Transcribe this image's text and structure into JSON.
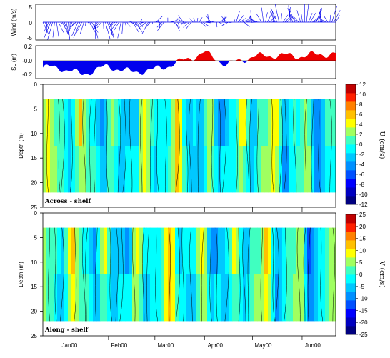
{
  "chart_data": [
    {
      "type": "line",
      "panel": "wind",
      "ylabel": "Wind (m/s)",
      "ylim": [
        -5,
        5
      ],
      "yticks": [
        "5",
        "0",
        "-5"
      ],
      "style": "stick-vectors",
      "color": "#0000ee",
      "x": [
        "2000-01-01",
        "2000-01-15",
        "2000-02-01",
        "2000-02-15",
        "2000-03-01",
        "2000-03-15",
        "2000-04-01",
        "2000-04-15",
        "2000-05-01",
        "2000-05-15",
        "2000-06-01",
        "2000-06-15"
      ],
      "values": [
        -3.8,
        -2.5,
        -3.2,
        -1.5,
        -0.6,
        -0.4,
        0.3,
        0.8,
        1.2,
        2.8,
        3.5,
        2.2
      ]
    },
    {
      "type": "area",
      "panel": "sea-level",
      "ylabel": "SL (m)",
      "ylim": [
        -0.25,
        0.2
      ],
      "yticks": [
        "0.2",
        "-0.0",
        "-0.2"
      ],
      "positive_color": "#ee0000",
      "negative_color": "#0000ee",
      "x": [
        "2000-01-01",
        "2000-01-15",
        "2000-02-01",
        "2000-02-15",
        "2000-03-01",
        "2000-03-15",
        "2000-04-01",
        "2000-04-15",
        "2000-05-01",
        "2000-05-15",
        "2000-06-01",
        "2000-06-15"
      ],
      "values": [
        -0.1,
        -0.2,
        -0.08,
        -0.17,
        -0.13,
        -0.03,
        0.12,
        -0.06,
        0.06,
        0.08,
        0.07,
        0.1
      ]
    },
    {
      "type": "heatmap",
      "panel": "across-shelf",
      "label": "Across - shelf",
      "ylabel": "Depth (m)",
      "ylim": [
        25,
        0
      ],
      "yticks": [
        "0",
        "5",
        "10",
        "15",
        "20",
        "25"
      ],
      "colorbar_label": "U (cm/s)",
      "colorbar_ticks": [
        "12",
        "10",
        "8",
        "6",
        "4",
        "2",
        "0",
        "-2",
        "-4",
        "-6",
        "-8",
        "-10",
        "-12"
      ],
      "colorbar_range": [
        -12,
        12
      ]
    },
    {
      "type": "heatmap",
      "panel": "along-shelf",
      "label": "Along - shelf",
      "ylabel": "Depth (m)",
      "ylim": [
        25,
        0
      ],
      "yticks": [
        "0",
        "5",
        "10",
        "15",
        "20",
        "25"
      ],
      "colorbar_label": "V (cm/s)",
      "colorbar_ticks": [
        "25",
        "20",
        "15",
        "10",
        "5",
        "0",
        "-5",
        "-10",
        "-15",
        "-20",
        "-25"
      ],
      "colorbar_range": [
        -25,
        25
      ]
    }
  ],
  "xaxis": {
    "tick_labels": [
      "Jan00",
      "Feb00",
      "Mar00",
      "Apr00",
      "May00",
      "Jun00"
    ]
  }
}
